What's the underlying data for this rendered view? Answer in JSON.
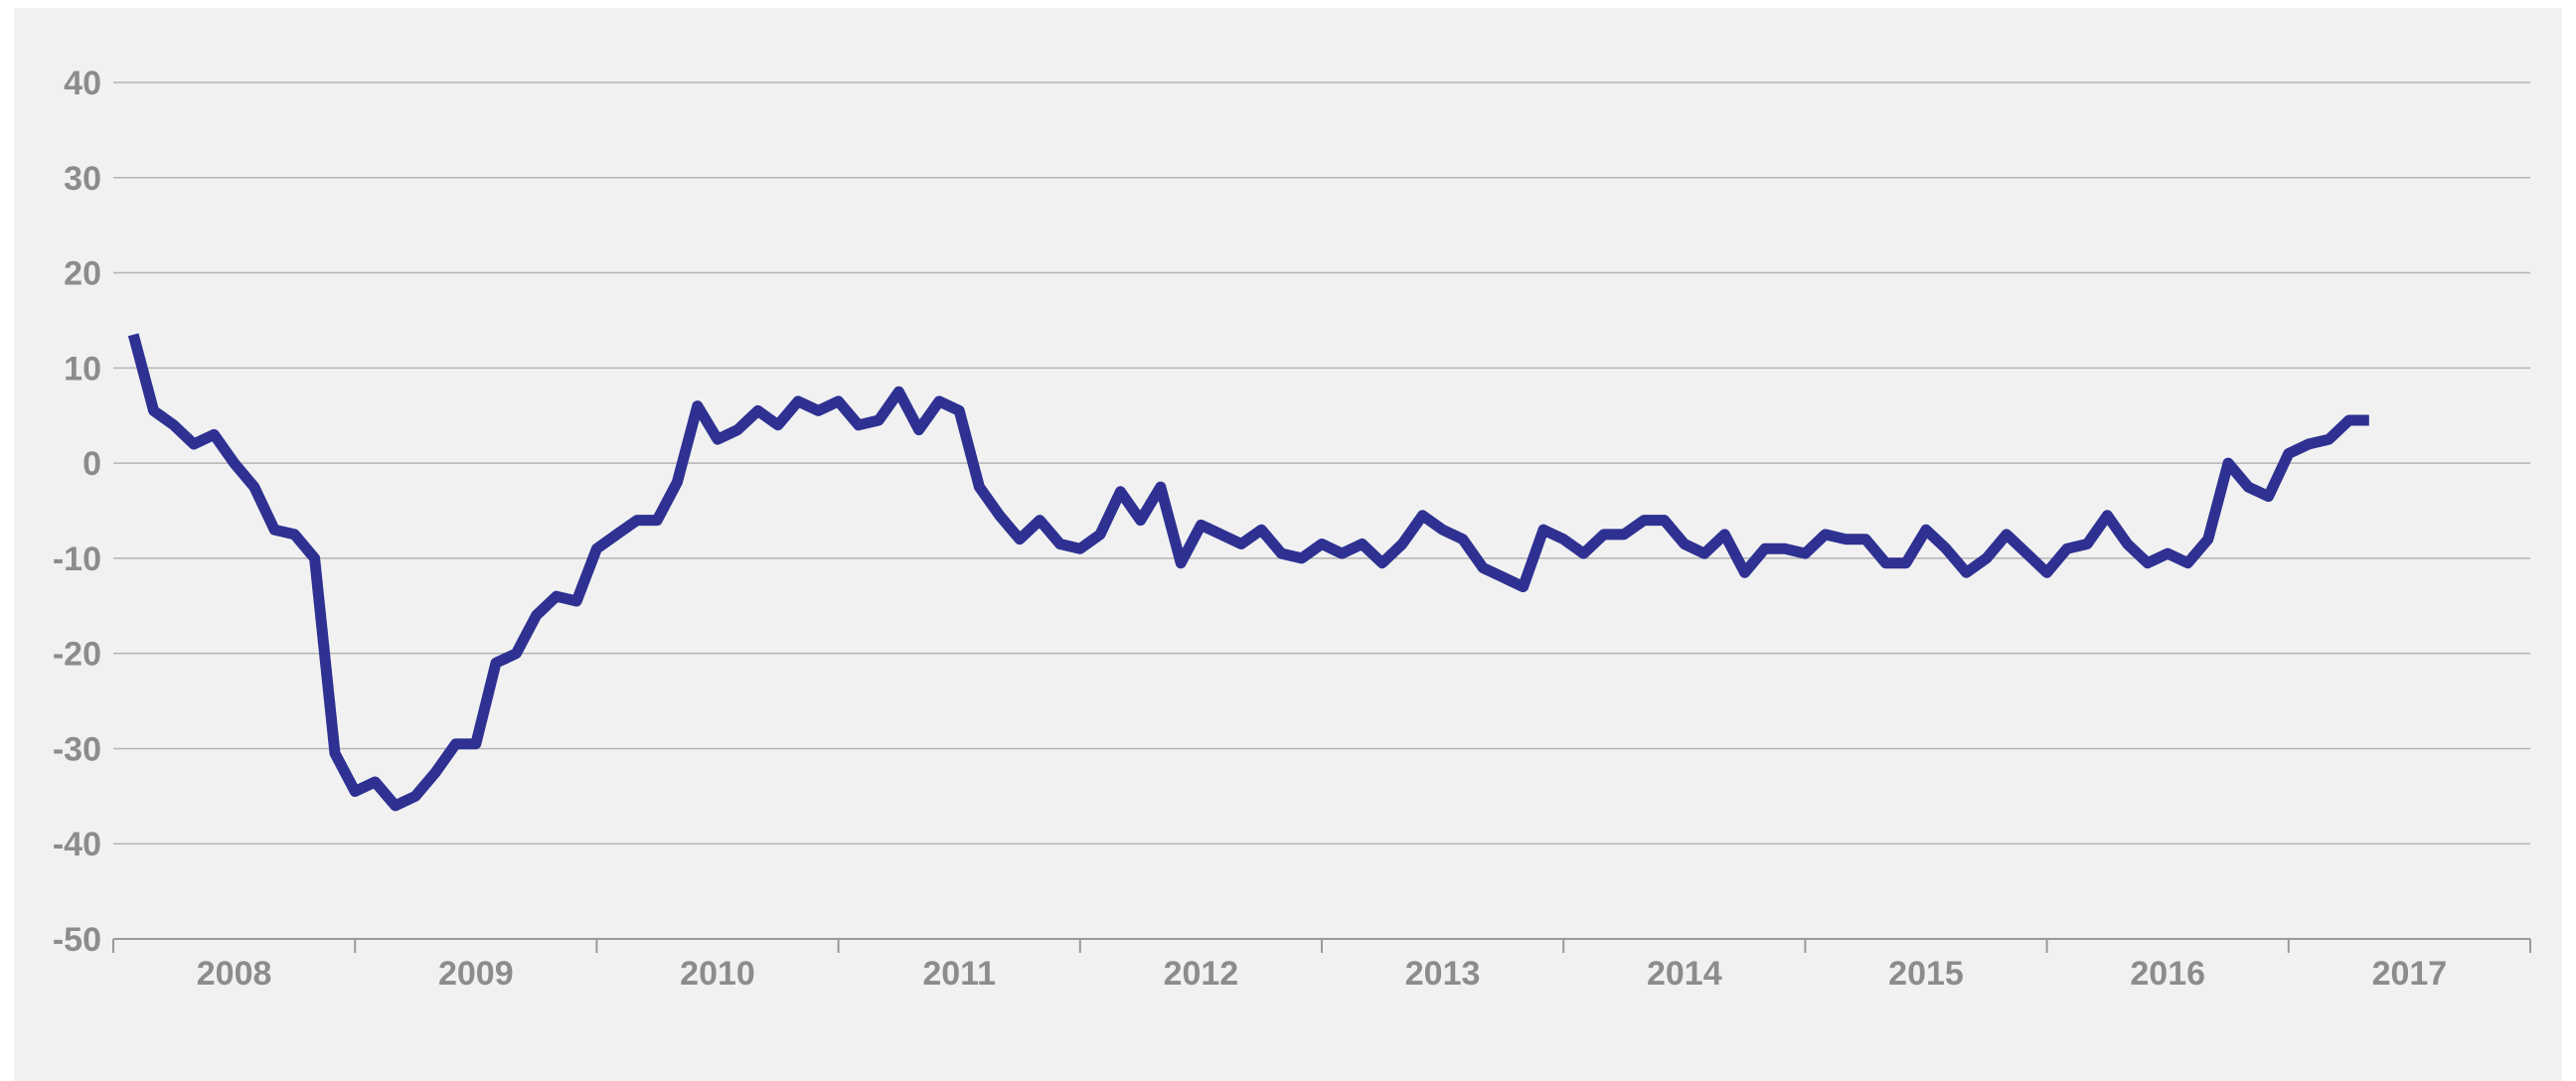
{
  "chart_data": {
    "type": "line",
    "title": "",
    "xlabel": "",
    "ylabel": "",
    "ylim": [
      -50,
      40
    ],
    "yticks": [
      40,
      30,
      20,
      10,
      0,
      -10,
      -20,
      -30,
      -40,
      -50
    ],
    "xticks": [
      "2008",
      "2009",
      "2010",
      "2011",
      "2012",
      "2013",
      "2014",
      "2015",
      "2016",
      "2017"
    ],
    "xlim": [
      2008.0,
      2018.0
    ],
    "grid": "horizontal",
    "line_color": "#2e3192",
    "series": [
      {
        "values": [
          [
            2008.083,
            13.5
          ],
          [
            2008.167,
            5.5
          ],
          [
            2008.25,
            4
          ],
          [
            2008.333,
            2
          ],
          [
            2008.417,
            3
          ],
          [
            2008.5,
            0
          ],
          [
            2008.583,
            -2.5
          ],
          [
            2008.667,
            -7
          ],
          [
            2008.75,
            -7.5
          ],
          [
            2008.833,
            -10
          ],
          [
            2008.917,
            -30.5
          ],
          [
            2009.0,
            -34.5
          ],
          [
            2009.083,
            -33.5
          ],
          [
            2009.167,
            -36
          ],
          [
            2009.25,
            -35
          ],
          [
            2009.333,
            -32.5
          ],
          [
            2009.417,
            -29.5
          ],
          [
            2009.5,
            -29.5
          ],
          [
            2009.583,
            -21
          ],
          [
            2009.667,
            -20
          ],
          [
            2009.75,
            -16
          ],
          [
            2009.833,
            -14
          ],
          [
            2009.917,
            -14.5
          ],
          [
            2010.0,
            -9
          ],
          [
            2010.083,
            -7.5
          ],
          [
            2010.167,
            -6
          ],
          [
            2010.25,
            -6
          ],
          [
            2010.333,
            -2
          ],
          [
            2010.417,
            6
          ],
          [
            2010.5,
            2.5
          ],
          [
            2010.583,
            3.5
          ],
          [
            2010.667,
            5.5
          ],
          [
            2010.75,
            4
          ],
          [
            2010.833,
            6.5
          ],
          [
            2010.917,
            5.5
          ],
          [
            2011.0,
            6.5
          ],
          [
            2011.083,
            4
          ],
          [
            2011.167,
            4.5
          ],
          [
            2011.25,
            7.5
          ],
          [
            2011.333,
            3.5
          ],
          [
            2011.417,
            6.5
          ],
          [
            2011.5,
            5.5
          ],
          [
            2011.583,
            -2.5
          ],
          [
            2011.667,
            -5.5
          ],
          [
            2011.75,
            -8
          ],
          [
            2011.833,
            -6
          ],
          [
            2011.917,
            -8.5
          ],
          [
            2012.0,
            -9
          ],
          [
            2012.083,
            -7.5
          ],
          [
            2012.167,
            -3
          ],
          [
            2012.25,
            -6
          ],
          [
            2012.333,
            -2.5
          ],
          [
            2012.417,
            -10.5
          ],
          [
            2012.5,
            -6.5
          ],
          [
            2012.583,
            -7.5
          ],
          [
            2012.667,
            -8.5
          ],
          [
            2012.75,
            -7
          ],
          [
            2012.833,
            -9.5
          ],
          [
            2012.917,
            -10
          ],
          [
            2013.0,
            -8.5
          ],
          [
            2013.083,
            -9.5
          ],
          [
            2013.167,
            -8.5
          ],
          [
            2013.25,
            -10.5
          ],
          [
            2013.333,
            -8.5
          ],
          [
            2013.417,
            -5.5
          ],
          [
            2013.5,
            -7
          ],
          [
            2013.583,
            -8
          ],
          [
            2013.667,
            -11
          ],
          [
            2013.75,
            -12
          ],
          [
            2013.833,
            -13
          ],
          [
            2013.917,
            -7
          ],
          [
            2014.0,
            -8
          ],
          [
            2014.083,
            -9.5
          ],
          [
            2014.167,
            -7.5
          ],
          [
            2014.25,
            -7.5
          ],
          [
            2014.333,
            -6
          ],
          [
            2014.417,
            -6
          ],
          [
            2014.5,
            -8.5
          ],
          [
            2014.583,
            -9.5
          ],
          [
            2014.667,
            -7.5
          ],
          [
            2014.75,
            -11.5
          ],
          [
            2014.833,
            -9
          ],
          [
            2014.917,
            -9
          ],
          [
            2015.0,
            -9.5
          ],
          [
            2015.083,
            -7.5
          ],
          [
            2015.167,
            -8
          ],
          [
            2015.25,
            -8
          ],
          [
            2015.333,
            -10.5
          ],
          [
            2015.417,
            -10.5
          ],
          [
            2015.5,
            -7
          ],
          [
            2015.583,
            -9
          ],
          [
            2015.667,
            -11.5
          ],
          [
            2015.75,
            -10
          ],
          [
            2015.833,
            -7.5
          ],
          [
            2015.917,
            -9.5
          ],
          [
            2016.0,
            -11.5
          ],
          [
            2016.083,
            -9
          ],
          [
            2016.167,
            -8.5
          ],
          [
            2016.25,
            -5.5
          ],
          [
            2016.333,
            -8.5
          ],
          [
            2016.417,
            -10.5
          ],
          [
            2016.5,
            -9.5
          ],
          [
            2016.583,
            -10.5
          ],
          [
            2016.667,
            -8
          ],
          [
            2016.75,
            0
          ],
          [
            2016.833,
            -2.5
          ],
          [
            2016.917,
            -3.5
          ],
          [
            2017.0,
            1
          ],
          [
            2017.083,
            2
          ],
          [
            2017.167,
            2.5
          ],
          [
            2017.25,
            4.5
          ],
          [
            2017.333,
            4.5
          ]
        ]
      }
    ]
  }
}
